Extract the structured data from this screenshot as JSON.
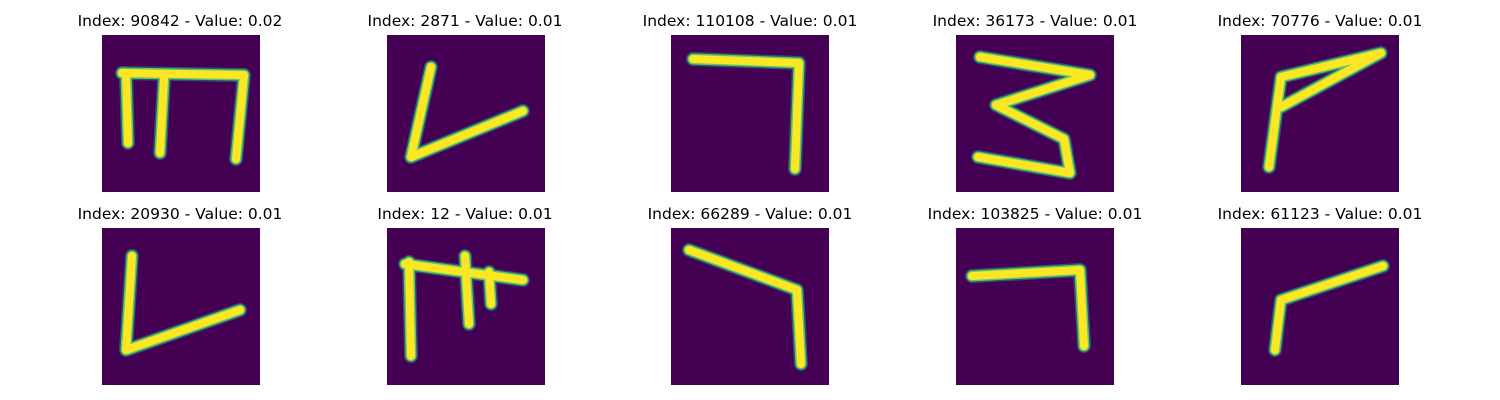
{
  "panels": [
    {
      "title": "Index: 90842 - Value: 0.02",
      "glyph": "m"
    },
    {
      "title": "Index: 2871 - Value: 0.01",
      "glyph": "v-check"
    },
    {
      "title": "Index: 110108 - Value: 0.01",
      "glyph": "seven-hook"
    },
    {
      "title": "Index: 36173 - Value: 0.01",
      "glyph": "three-zigzag"
    },
    {
      "title": "Index: 70776 - Value: 0.01",
      "glyph": "p-flag"
    },
    {
      "title": "Index: 20930 - Value: 0.01",
      "glyph": "v-check"
    },
    {
      "title": "Index: 12 - Value: 0.01",
      "glyph": "m-open"
    },
    {
      "title": "Index: 66289 - Value: 0.01",
      "glyph": "seven-hook"
    },
    {
      "title": "Index: 103825 - Value: 0.01",
      "glyph": "seven-hook"
    },
    {
      "title": "Index: 61123 - Value: 0.01",
      "glyph": "r-hook"
    }
  ],
  "colors": {
    "background": "#440154",
    "stroke": "#fde725",
    "edge": "#21918c"
  }
}
